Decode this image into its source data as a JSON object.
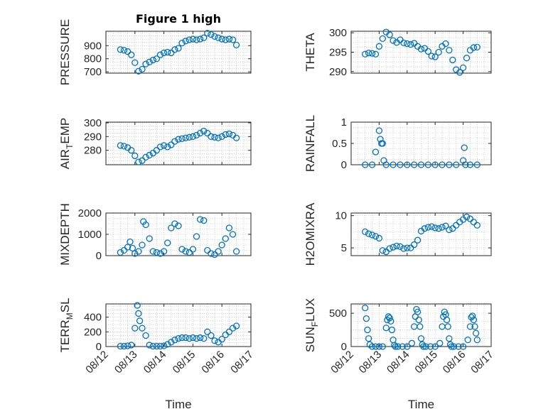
{
  "figure": {
    "title": "Figure 1 high",
    "marker_color": "#0072bd",
    "grid": "on (dotted)"
  },
  "chart_data": [
    {
      "type": "scatter",
      "panel": "PRESSURE",
      "ylabel": "PRESSURE",
      "ylabel_sub": "",
      "xlabel": "",
      "ylim": [
        690,
        1010
      ],
      "yticks": [
        700,
        800,
        900
      ],
      "x_tick_labels": false,
      "x": [
        "08/12 12:00",
        "08/12 15:00",
        "08/12 18:00",
        "08/12 21:00",
        "08/13 00:00",
        "08/13 03:00",
        "08/13 06:00",
        "08/13 09:00",
        "08/13 12:00",
        "08/13 15:00",
        "08/13 18:00",
        "08/13 21:00",
        "08/14 00:00",
        "08/14 03:00",
        "08/14 06:00",
        "08/14 09:00",
        "08/14 12:00",
        "08/14 15:00",
        "08/14 18:00",
        "08/14 21:00",
        "08/15 00:00",
        "08/15 03:00",
        "08/15 06:00",
        "08/15 09:00",
        "08/15 12:00",
        "08/15 15:00",
        "08/15 18:00",
        "08/15 21:00",
        "08/16 00:00",
        "08/16 03:00",
        "08/16 06:00",
        "08/16 09:00",
        "08/16 12:00"
      ],
      "values": [
        870,
        865,
        855,
        830,
        770,
        705,
        720,
        760,
        775,
        790,
        800,
        830,
        845,
        850,
        845,
        870,
        880,
        920,
        935,
        945,
        950,
        945,
        950,
        960,
        995,
        985,
        970,
        960,
        950,
        945,
        950,
        945,
        905
      ]
    },
    {
      "type": "scatter",
      "panel": "THETA",
      "ylabel": "THETA",
      "ylabel_sub": "",
      "xlabel": "",
      "ylim": [
        289.6,
        300.4
      ],
      "yticks": [
        290,
        295,
        300
      ],
      "x_tick_labels": false,
      "x": [
        "08/12 12:00",
        "08/12 15:00",
        "08/12 18:00",
        "08/12 21:00",
        "08/13 00:00",
        "08/13 03:00",
        "08/13 06:00",
        "08/13 09:00",
        "08/13 12:00",
        "08/13 15:00",
        "08/13 18:00",
        "08/13 21:00",
        "08/14 00:00",
        "08/14 03:00",
        "08/14 06:00",
        "08/14 09:00",
        "08/14 12:00",
        "08/14 15:00",
        "08/14 18:00",
        "08/14 21:00",
        "08/15 00:00",
        "08/15 03:00",
        "08/15 06:00",
        "08/15 09:00",
        "08/15 12:00",
        "08/15 15:00",
        "08/15 18:00",
        "08/15 21:00",
        "08/16 00:00",
        "08/16 03:00",
        "08/16 06:00",
        "08/16 09:00",
        "08/16 12:00"
      ],
      "values": [
        294.5,
        294.8,
        294.7,
        294.5,
        296.5,
        298.5,
        300.2,
        299.5,
        298.0,
        297.5,
        298.2,
        297.4,
        297.2,
        297.0,
        297.3,
        296.5,
        295.8,
        296.0,
        295.2,
        294.0,
        293.8,
        295.0,
        296.5,
        297.2,
        295.5,
        293.0,
        290.5,
        289.8,
        291.0,
        293.5,
        295.5,
        296.2,
        296.3
      ]
    },
    {
      "type": "scatter",
      "panel": "AIR_TEMP",
      "ylabel": "AIR",
      "ylabel_sub": "T",
      "ylabel_suffix": "EMP",
      "xlabel": "",
      "ylim": [
        269.5,
        300.5
      ],
      "yticks": [
        280,
        290,
        300
      ],
      "x_tick_labels": false,
      "x": [
        "08/12 12:00",
        "08/12 15:00",
        "08/12 18:00",
        "08/12 21:00",
        "08/13 00:00",
        "08/13 03:00",
        "08/13 06:00",
        "08/13 09:00",
        "08/13 12:00",
        "08/13 15:00",
        "08/13 18:00",
        "08/13 21:00",
        "08/14 00:00",
        "08/14 03:00",
        "08/14 06:00",
        "08/14 09:00",
        "08/14 12:00",
        "08/14 15:00",
        "08/14 18:00",
        "08/14 21:00",
        "08/15 00:00",
        "08/15 03:00",
        "08/15 06:00",
        "08/15 09:00",
        "08/15 12:00",
        "08/15 15:00",
        "08/15 18:00",
        "08/15 21:00",
        "08/16 00:00",
        "08/16 03:00",
        "08/16 06:00",
        "08/16 09:00",
        "08/16 12:00"
      ],
      "values": [
        283.5,
        283.0,
        282.0,
        280.0,
        276.0,
        271.5,
        272.5,
        275.0,
        276.5,
        278.0,
        280.0,
        282.5,
        283.5,
        282.5,
        284.0,
        286.5,
        288.0,
        288.5,
        289.0,
        289.5,
        290.0,
        291.0,
        292.5,
        294.0,
        292.5,
        290.0,
        289.5,
        289.0,
        290.0,
        291.5,
        292.0,
        291.0,
        289.0
      ]
    },
    {
      "type": "scatter",
      "panel": "RAINFALL",
      "ylabel": "RAINFALL",
      "ylabel_sub": "",
      "xlabel": "",
      "ylim": [
        0,
        1
      ],
      "yticks": [
        0,
        0.5,
        1
      ],
      "x_tick_labels": false,
      "x": [
        "08/12 12:00",
        "08/12 18:00",
        "08/12 21:00",
        "08/13 00:00",
        "08/13 01:00",
        "08/13 02:00",
        "08/13 03:00",
        "08/13 04:00",
        "08/13 06:00",
        "08/13 12:00",
        "08/13 18:00",
        "08/14 00:00",
        "08/14 06:00",
        "08/14 12:00",
        "08/14 18:00",
        "08/15 00:00",
        "08/15 06:00",
        "08/15 12:00",
        "08/15 18:00",
        "08/16 00:00",
        "08/16 01:00",
        "08/16 02:00",
        "08/16 06:00",
        "08/16 12:00"
      ],
      "values": [
        0,
        0,
        0.3,
        0.8,
        0.6,
        0.5,
        0.5,
        0.1,
        0,
        0,
        0,
        0,
        0,
        0,
        0,
        0,
        0,
        0,
        0,
        0.1,
        0.4,
        0,
        0,
        0
      ]
    },
    {
      "type": "scatter",
      "panel": "MIXDEPTH",
      "ylabel": "MIXDEPTH",
      "ylabel_sub": "",
      "xlabel": "",
      "ylim": [
        0,
        2000
      ],
      "yticks": [
        0,
        1000,
        2000
      ],
      "x_tick_labels": false,
      "x": [
        "08/12 12:00",
        "08/12 15:00",
        "08/12 18:00",
        "08/12 20:00",
        "08/12 22:00",
        "08/13 00:00",
        "08/13 03:00",
        "08/13 06:00",
        "08/13 07:00",
        "08/13 09:00",
        "08/13 12:00",
        "08/13 15:00",
        "08/13 18:00",
        "08/13 21:00",
        "08/14 00:00",
        "08/14 03:00",
        "08/14 06:00",
        "08/14 09:00",
        "08/14 12:00",
        "08/14 15:00",
        "08/14 18:00",
        "08/14 21:00",
        "08/15 00:00",
        "08/15 03:00",
        "08/15 06:00",
        "08/15 09:00",
        "08/15 12:00",
        "08/15 15:00",
        "08/15 18:00",
        "08/15 21:00",
        "08/16 00:00",
        "08/16 03:00",
        "08/16 06:00",
        "08/16 09:00",
        "08/16 12:00"
      ],
      "values": [
        150,
        250,
        400,
        650,
        350,
        100,
        200,
        500,
        1600,
        1450,
        800,
        200,
        150,
        100,
        200,
        600,
        1300,
        1500,
        1400,
        300,
        200,
        150,
        300,
        900,
        1700,
        1650,
        250,
        100,
        50,
        200,
        500,
        800,
        1300,
        1000,
        200
      ]
    },
    {
      "type": "scatter",
      "panel": "H2OMIXRA",
      "ylabel": "H2OMIXRA",
      "ylabel_sub": "",
      "xlabel": "",
      "ylim": [
        3.8,
        10.4
      ],
      "yticks": [
        5,
        10
      ],
      "x_tick_labels": false,
      "x": [
        "08/12 12:00",
        "08/12 15:00",
        "08/12 18:00",
        "08/12 21:00",
        "08/13 00:00",
        "08/13 03:00",
        "08/13 06:00",
        "08/13 09:00",
        "08/13 12:00",
        "08/13 15:00",
        "08/13 18:00",
        "08/13 21:00",
        "08/14 00:00",
        "08/14 03:00",
        "08/14 06:00",
        "08/14 09:00",
        "08/14 12:00",
        "08/14 15:00",
        "08/14 18:00",
        "08/14 21:00",
        "08/15 00:00",
        "08/15 03:00",
        "08/15 06:00",
        "08/15 09:00",
        "08/15 12:00",
        "08/15 15:00",
        "08/15 18:00",
        "08/15 21:00",
        "08/16 00:00",
        "08/16 03:00",
        "08/16 06:00",
        "08/16 09:00",
        "08/16 12:00"
      ],
      "values": [
        7.5,
        7.2,
        7.0,
        6.8,
        6.5,
        4.6,
        4.4,
        4.9,
        5.1,
        5.3,
        5.2,
        4.9,
        5.0,
        5.0,
        5.5,
        6.2,
        7.6,
        8.0,
        8.2,
        8.3,
        8.1,
        8.0,
        8.2,
        8.4,
        7.8,
        8.0,
        8.5,
        9.0,
        9.4,
        9.8,
        9.5,
        9.0,
        8.5
      ]
    },
    {
      "type": "scatter",
      "panel": "TERR_MSL",
      "ylabel": "TERR",
      "ylabel_sub": "M",
      "ylabel_suffix": "SL",
      "xlabel": "Time",
      "ylim": [
        0,
        580
      ],
      "yticks": [
        0,
        200,
        400
      ],
      "x_tick_labels": true,
      "x": [
        "08/12 12:00",
        "08/12 15:00",
        "08/12 18:00",
        "08/12 21:00",
        "08/13 00:00",
        "08/13 02:00",
        "08/13 03:00",
        "08/13 04:00",
        "08/13 06:00",
        "08/13 09:00",
        "08/13 12:00",
        "08/13 15:00",
        "08/13 18:00",
        "08/13 21:00",
        "08/14 00:00",
        "08/14 03:00",
        "08/14 06:00",
        "08/14 09:00",
        "08/14 12:00",
        "08/14 15:00",
        "08/14 18:00",
        "08/14 21:00",
        "08/15 00:00",
        "08/15 03:00",
        "08/15 06:00",
        "08/15 09:00",
        "08/15 12:00",
        "08/15 15:00",
        "08/15 18:00",
        "08/15 21:00",
        "08/16 00:00",
        "08/16 03:00",
        "08/16 06:00",
        "08/16 09:00",
        "08/16 12:00"
      ],
      "values": [
        5,
        5,
        10,
        20,
        250,
        560,
        450,
        350,
        250,
        150,
        20,
        5,
        5,
        5,
        10,
        30,
        60,
        90,
        110,
        120,
        120,
        110,
        120,
        110,
        120,
        110,
        200,
        150,
        80,
        60,
        100,
        160,
        200,
        250,
        280
      ]
    },
    {
      "type": "scatter",
      "panel": "SUN_FLUX",
      "ylabel": "SUN",
      "ylabel_sub": "F",
      "ylabel_suffix": "LUX",
      "xlabel": "Time",
      "ylim": [
        0,
        640
      ],
      "yticks": [
        0,
        500
      ],
      "x_tick_labels": true,
      "x": [
        "08/12 12:00",
        "08/12 13:00",
        "08/12 14:00",
        "08/12 15:00",
        "08/12 16:00",
        "08/12 18:00",
        "08/12 21:00",
        "08/13 00:00",
        "08/13 03:00",
        "08/13 06:00",
        "08/13 07:00",
        "08/13 08:00",
        "08/13 09:00",
        "08/13 10:00",
        "08/13 11:00",
        "08/13 12:00",
        "08/13 13:00",
        "08/13 14:00",
        "08/13 16:00",
        "08/13 20:00",
        "08/14 00:00",
        "08/14 04:00",
        "08/14 06:00",
        "08/14 07:00",
        "08/14 08:00",
        "08/14 09:00",
        "08/14 10:00",
        "08/14 11:00",
        "08/14 12:00",
        "08/14 13:00",
        "08/14 14:00",
        "08/14 16:00",
        "08/14 20:00",
        "08/15 00:00",
        "08/15 04:00",
        "08/15 06:00",
        "08/15 07:00",
        "08/15 08:00",
        "08/15 09:00",
        "08/15 10:00",
        "08/15 11:00",
        "08/15 12:00",
        "08/15 13:00",
        "08/15 14:00",
        "08/15 16:00",
        "08/15 20:00",
        "08/16 00:00",
        "08/16 04:00",
        "08/16 06:00",
        "08/16 07:00",
        "08/16 08:00",
        "08/16 09:00",
        "08/16 10:00",
        "08/16 11:00",
        "08/16 12:00"
      ],
      "values": [
        580,
        420,
        250,
        120,
        30,
        0,
        0,
        0,
        0,
        280,
        400,
        450,
        430,
        380,
        250,
        100,
        20,
        0,
        0,
        0,
        0,
        50,
        300,
        450,
        560,
        520,
        400,
        300,
        120,
        30,
        0,
        0,
        0,
        0,
        50,
        300,
        450,
        520,
        480,
        400,
        300,
        120,
        30,
        0,
        0,
        0,
        0,
        100,
        300,
        440,
        460,
        400,
        300,
        200,
        100
      ]
    }
  ],
  "x_axis": {
    "start": "08/12 00:00",
    "end": "08/17 00:00",
    "tick_labels": [
      "08/12",
      "08/13",
      "08/14",
      "08/15",
      "08/16",
      "08/17"
    ]
  }
}
